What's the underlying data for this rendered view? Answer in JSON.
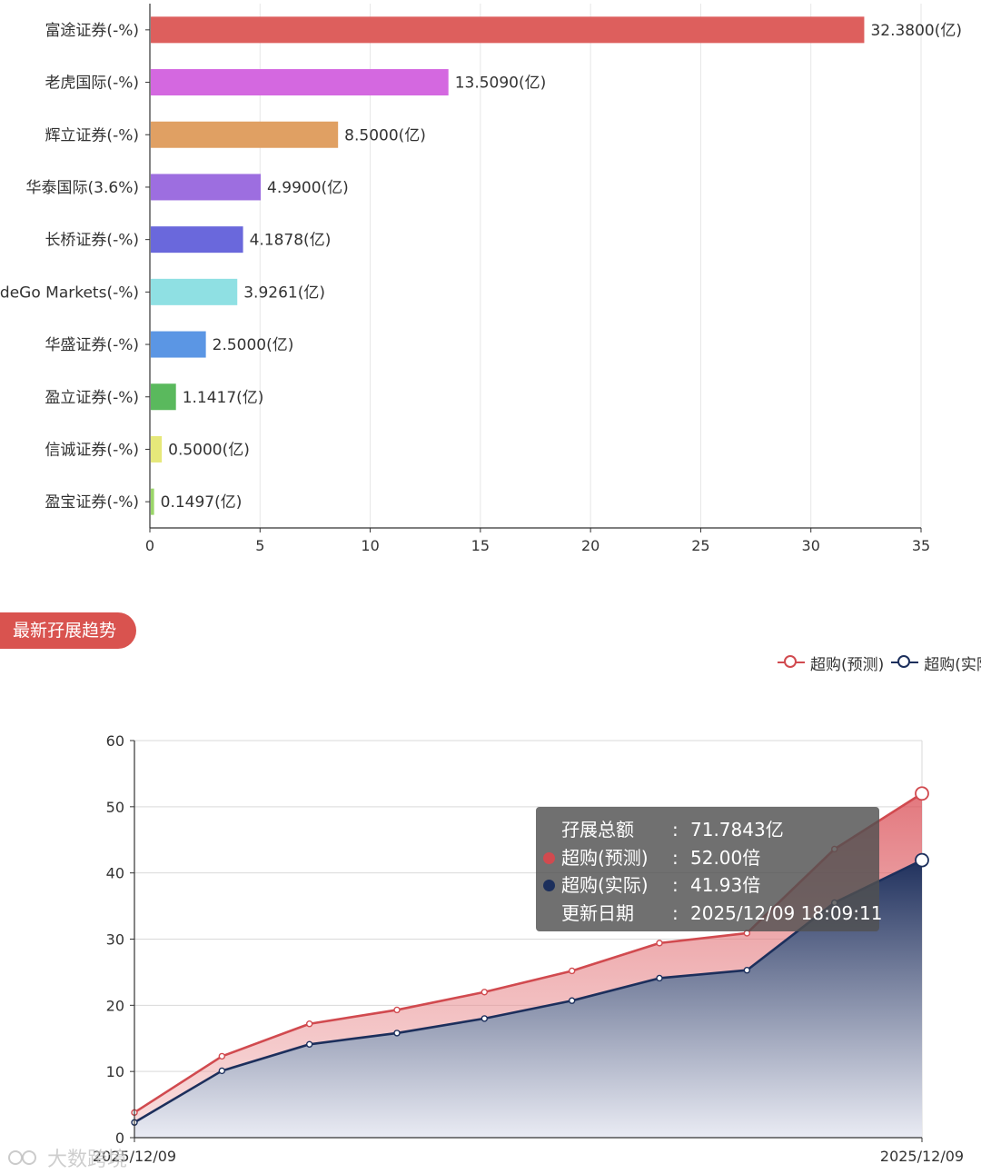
{
  "bar_section": {
    "chart_data": {
      "type": "bar",
      "orientation": "horizontal",
      "categories": [
        "富途证券(-%)",
        "老虎国际(-%)",
        "辉立证券(-%)",
        "华泰国际(3.6%)",
        "长桥证券(-%)",
        "TradeGo Markets(-%)",
        "华盛证券(-%)",
        "盈立证券(-%)",
        "信诚证券(-%)",
        "盈宝证券(-%)"
      ],
      "values": [
        32.38,
        13.509,
        8.5,
        4.99,
        4.1878,
        3.9261,
        2.5,
        1.1417,
        0.5,
        0.1497
      ],
      "value_labels": [
        "32.3800(亿)",
        "13.5090(亿)",
        "8.5000(亿)",
        "4.9900(亿)",
        "4.1878(亿)",
        "3.9261(亿)",
        "2.5000(亿)",
        "1.1417(亿)",
        "0.5000(亿)",
        "0.1497(亿)"
      ],
      "colors": [
        "#dd5f5d",
        "#d468e0",
        "#e0a063",
        "#9d6ee0",
        "#6a68dc",
        "#8fe0e3",
        "#5b96e4",
        "#5ab95d",
        "#e6e87a",
        "#9bd66a"
      ],
      "xlim": [
        0,
        35
      ],
      "xticks": [
        "0",
        "5",
        "10",
        "15",
        "20",
        "25",
        "30",
        "35"
      ],
      "grid": true
    }
  },
  "section_tab": {
    "label": "最新孖展趋势"
  },
  "legend": {
    "items": [
      {
        "label": "超购(预测)",
        "color": "#d14a4f"
      },
      {
        "label": "超购(实际)",
        "color": "#1c2f5c"
      }
    ]
  },
  "line_section": {
    "chart_data": {
      "type": "area",
      "x_labels": [
        "2025/12/09",
        "2025/12/09"
      ],
      "ylim": [
        0,
        60
      ],
      "yticks": [
        "0",
        "10",
        "20",
        "30",
        "40",
        "50",
        "60"
      ],
      "grid": true,
      "series": [
        {
          "name": "超购(预测)",
          "color": "#d14a4f",
          "values": [
            3.8,
            12.3,
            17.2,
            19.3,
            22.0,
            25.2,
            29.4,
            30.9,
            43.6,
            52.0
          ]
        },
        {
          "name": "超购(实际)",
          "color": "#1c2f5c",
          "values": [
            2.3,
            10.1,
            14.1,
            15.8,
            18.0,
            20.7,
            24.1,
            25.3,
            35.5,
            41.93
          ]
        }
      ]
    }
  },
  "tooltip": {
    "rows": [
      {
        "label": "孖展总额",
        "value": "71.7843亿",
        "color": ""
      },
      {
        "label": "超购(预测)",
        "value": "52.00倍",
        "color": "#d14a4f"
      },
      {
        "label": "超购(实际)",
        "value": "41.93倍",
        "color": "#1c2f5c"
      },
      {
        "label": "更新日期",
        "value": "2025/12/09 18:09:11",
        "color": ""
      }
    ],
    "separator": ":"
  },
  "watermark": {
    "text": "大数跨境"
  }
}
